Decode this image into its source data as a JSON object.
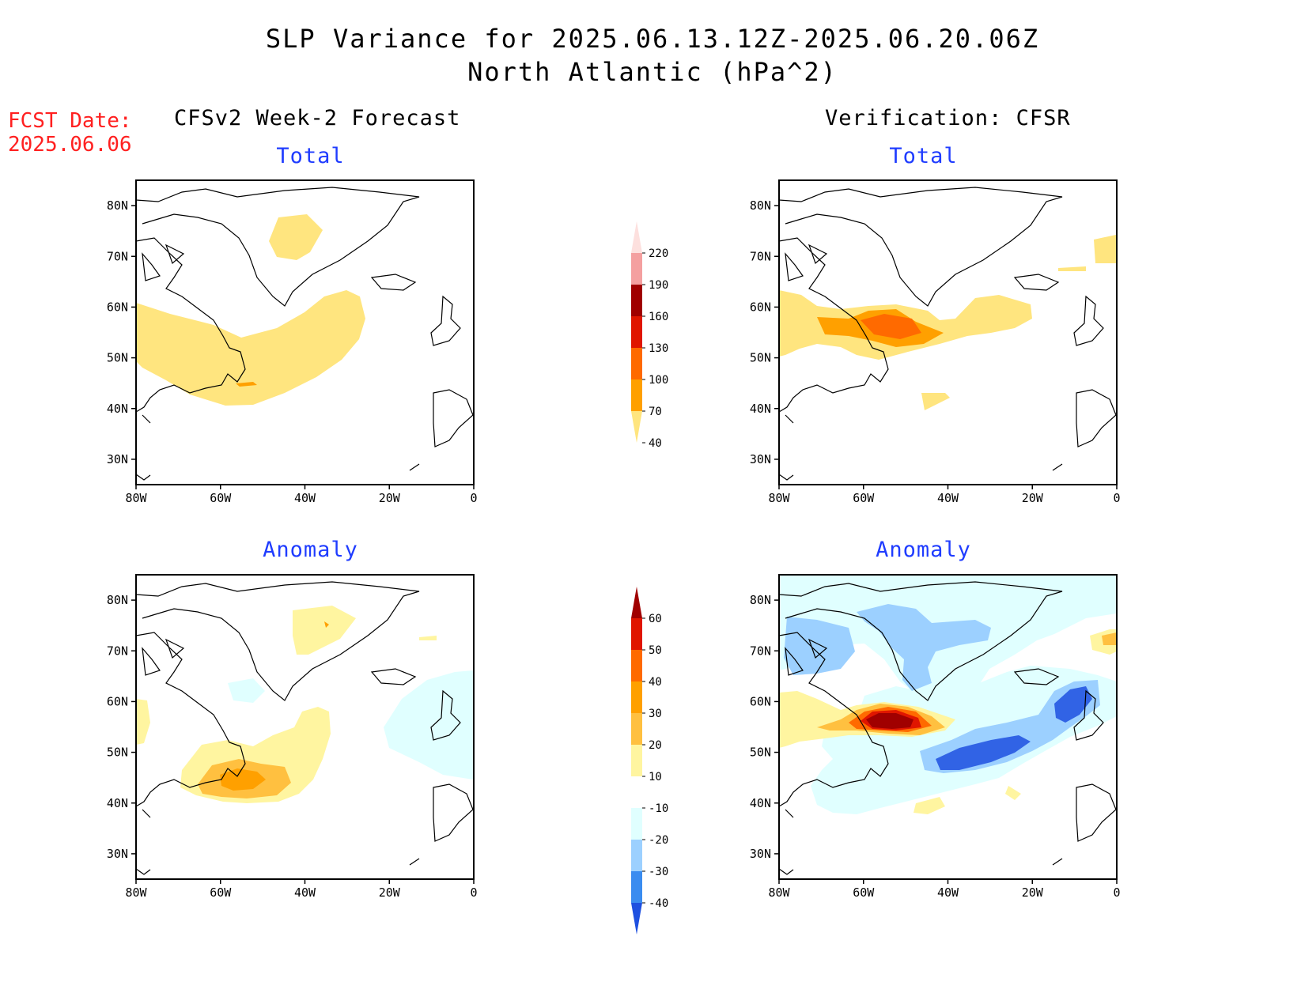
{
  "title": {
    "line1": "SLP Variance for 2025.06.13.12Z-2025.06.20.06Z",
    "line2": "North Atlantic (hPa^2)"
  },
  "fcst_date": {
    "label": "FCST Date:",
    "value": "2025.06.06"
  },
  "columns": {
    "left": "CFSv2 Week-2 Forecast",
    "right": "Verification: CFSR"
  },
  "subtitles": {
    "total": "Total",
    "anomaly": "Anomaly"
  },
  "map_axes": {
    "lat_ticks": [
      "80N",
      "70N",
      "60N",
      "50N",
      "40N",
      "30N"
    ],
    "lon_ticks": [
      "80W",
      "60W",
      "40W",
      "20W",
      "0"
    ],
    "lon_range": [
      -80,
      0
    ],
    "lat_range": [
      25,
      85
    ]
  },
  "colors": {
    "total_scale": [
      "#ffe57f",
      "#ffa000",
      "#ff6a00",
      "#e01600",
      "#a00000",
      "#f4a0a0",
      "#fde0de"
    ],
    "anomaly_scale": [
      "#1e50e0",
      "#3a8cf0",
      "#9cd0ff",
      "#e0ffff",
      "#ffffff",
      "#fff5a0",
      "#ffc040",
      "#ffa000",
      "#ff6a00",
      "#e01600",
      "#a00000"
    ],
    "title_blue": "#1f3cff",
    "fcst_red": "#ff2020"
  },
  "colorbar_total": {
    "ticks": [
      "220",
      "190",
      "160",
      "130",
      "100",
      "70",
      "40"
    ]
  },
  "colorbar_anomaly": {
    "ticks": [
      "60",
      "50",
      "40",
      "30",
      "20",
      "10",
      "-10",
      "-20",
      "-30",
      "-40"
    ]
  }
}
